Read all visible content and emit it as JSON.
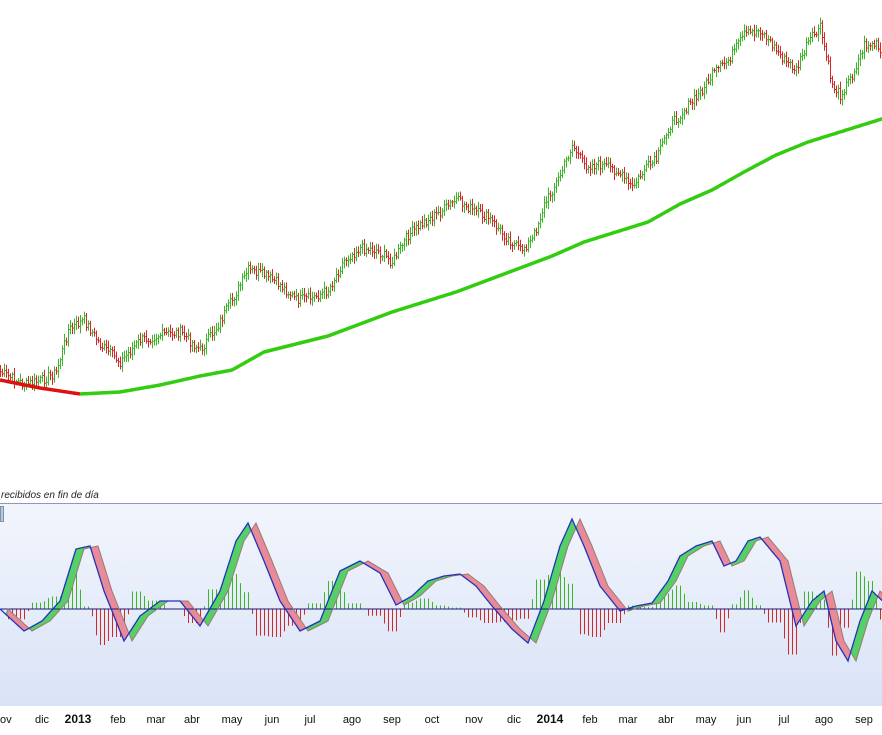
{
  "status_text": "recibidos en fin de día",
  "x_axis": {
    "labels": [
      {
        "text": "ov",
        "bold": false,
        "idx": 0
      },
      {
        "text": "dic",
        "bold": false,
        "idx": 21
      },
      {
        "text": "2013",
        "bold": true,
        "idx": 39
      },
      {
        "text": "feb",
        "bold": false,
        "idx": 59
      },
      {
        "text": "mar",
        "bold": false,
        "idx": 78
      },
      {
        "text": "abr",
        "bold": false,
        "idx": 96
      },
      {
        "text": "may",
        "bold": false,
        "idx": 116
      },
      {
        "text": "jun",
        "bold": false,
        "idx": 136
      },
      {
        "text": "jul",
        "bold": false,
        "idx": 155
      },
      {
        "text": "ago",
        "bold": false,
        "idx": 176
      },
      {
        "text": "sep",
        "bold": false,
        "idx": 196
      },
      {
        "text": "oct",
        "bold": false,
        "idx": 216
      },
      {
        "text": "nov",
        "bold": false,
        "idx": 237
      },
      {
        "text": "dic",
        "bold": false,
        "idx": 257
      },
      {
        "text": "2014",
        "bold": true,
        "idx": 275
      },
      {
        "text": "feb",
        "bold": false,
        "idx": 295
      },
      {
        "text": "mar",
        "bold": false,
        "idx": 314
      },
      {
        "text": "abr",
        "bold": false,
        "idx": 333
      },
      {
        "text": "may",
        "bold": false,
        "idx": 353
      },
      {
        "text": "jun",
        "bold": false,
        "idx": 372
      },
      {
        "text": "jul",
        "bold": false,
        "idx": 392
      },
      {
        "text": "ago",
        "bold": false,
        "idx": 412
      },
      {
        "text": "sep",
        "bold": false,
        "idx": 432
      }
    ]
  },
  "colors": {
    "up_bar": "#3cb528",
    "down_bar": "#d42828",
    "ma_up": "#33cc11",
    "ma_down": "#e01010",
    "osc_line": "#2233bb",
    "osc_signal": "#9a7a70",
    "fill_up": "#55d066",
    "fill_down": "#e88a98",
    "zero_line": "#1a1a7a"
  },
  "chart_data": [
    {
      "type": "line",
      "description_free": true,
      "series": [],
      "bars": {
        "count": 445,
        "keypoints": [
          [
            0,
            372
          ],
          [
            12,
            385
          ],
          [
            21,
            380
          ],
          [
            28,
            372
          ],
          [
            34,
            330
          ],
          [
            42,
            320
          ],
          [
            50,
            345
          ],
          [
            60,
            362
          ],
          [
            70,
            340
          ],
          [
            80,
            335
          ],
          [
            90,
            332
          ],
          [
            100,
            350
          ],
          [
            108,
            328
          ],
          [
            116,
            300
          ],
          [
            124,
            270
          ],
          [
            132,
            275
          ],
          [
            140,
            285
          ],
          [
            148,
            300
          ],
          [
            156,
            298
          ],
          [
            164,
            290
          ],
          [
            172,
            260
          ],
          [
            180,
            248
          ],
          [
            188,
            250
          ],
          [
            196,
            262
          ],
          [
            204,
            235
          ],
          [
            212,
            222
          ],
          [
            220,
            212
          ],
          [
            228,
            200
          ],
          [
            236,
            210
          ],
          [
            244,
            218
          ],
          [
            252,
            235
          ],
          [
            260,
            250
          ],
          [
            266,
            240
          ],
          [
            272,
            205
          ],
          [
            280,
            175
          ],
          [
            286,
            145
          ],
          [
            292,
            165
          ],
          [
            300,
            165
          ],
          [
            308,
            170
          ],
          [
            316,
            188
          ],
          [
            322,
            170
          ],
          [
            328,
            160
          ],
          [
            334,
            128
          ],
          [
            342,
            110
          ],
          [
            348,
            98
          ],
          [
            356,
            75
          ],
          [
            364,
            60
          ],
          [
            372,
            35
          ],
          [
            380,
            30
          ],
          [
            386,
            45
          ],
          [
            392,
            60
          ],
          [
            398,
            70
          ],
          [
            404,
            42
          ],
          [
            410,
            28
          ],
          [
            416,
            85
          ],
          [
            420,
            95
          ],
          [
            426,
            75
          ],
          [
            432,
            45
          ],
          [
            438,
            45
          ],
          [
            444,
            72
          ]
        ]
      },
      "ma": {
        "split_idx": 40,
        "keypoints": [
          [
            0,
            380
          ],
          [
            20,
            388
          ],
          [
            40,
            394
          ],
          [
            60,
            392
          ],
          [
            80,
            385
          ],
          [
            100,
            376
          ],
          [
            116,
            370
          ],
          [
            132,
            352
          ],
          [
            148,
            344
          ],
          [
            164,
            336
          ],
          [
            180,
            324
          ],
          [
            196,
            312
          ],
          [
            212,
            302
          ],
          [
            228,
            292
          ],
          [
            244,
            280
          ],
          [
            260,
            268
          ],
          [
            276,
            256
          ],
          [
            292,
            242
          ],
          [
            308,
            232
          ],
          [
            324,
            222
          ],
          [
            340,
            204
          ],
          [
            356,
            190
          ],
          [
            372,
            172
          ],
          [
            388,
            155
          ],
          [
            404,
            142
          ],
          [
            420,
            132
          ],
          [
            436,
            122
          ],
          [
            444,
            117
          ]
        ]
      }
    },
    {
      "type": "area",
      "osc_keypoints": [
        [
          0,
          608
        ],
        [
          12,
          630
        ],
        [
          21,
          620
        ],
        [
          30,
          600
        ],
        [
          38,
          548
        ],
        [
          45,
          545
        ],
        [
          52,
          590
        ],
        [
          62,
          640
        ],
        [
          70,
          615
        ],
        [
          80,
          600
        ],
        [
          90,
          600
        ],
        [
          100,
          625
        ],
        [
          110,
          590
        ],
        [
          118,
          540
        ],
        [
          124,
          522
        ],
        [
          132,
          560
        ],
        [
          140,
          600
        ],
        [
          150,
          630
        ],
        [
          160,
          620
        ],
        [
          170,
          570
        ],
        [
          180,
          560
        ],
        [
          190,
          572
        ],
        [
          198,
          604
        ],
        [
          206,
          595
        ],
        [
          214,
          580
        ],
        [
          222,
          575
        ],
        [
          230,
          573
        ],
        [
          238,
          585
        ],
        [
          246,
          605
        ],
        [
          256,
          628
        ],
        [
          264,
          642
        ],
        [
          272,
          600
        ],
        [
          280,
          545
        ],
        [
          286,
          518
        ],
        [
          292,
          545
        ],
        [
          300,
          585
        ],
        [
          310,
          610
        ],
        [
          318,
          605
        ],
        [
          326,
          602
        ],
        [
          334,
          580
        ],
        [
          340,
          555
        ],
        [
          348,
          545
        ],
        [
          356,
          540
        ],
        [
          362,
          565
        ],
        [
          368,
          560
        ],
        [
          374,
          540
        ],
        [
          380,
          536
        ],
        [
          390,
          560
        ],
        [
          398,
          625
        ],
        [
          406,
          600
        ],
        [
          412,
          590
        ],
        [
          418,
          640
        ],
        [
          424,
          660
        ],
        [
          430,
          620
        ],
        [
          436,
          590
        ],
        [
          444,
          605
        ]
      ]
    }
  ]
}
